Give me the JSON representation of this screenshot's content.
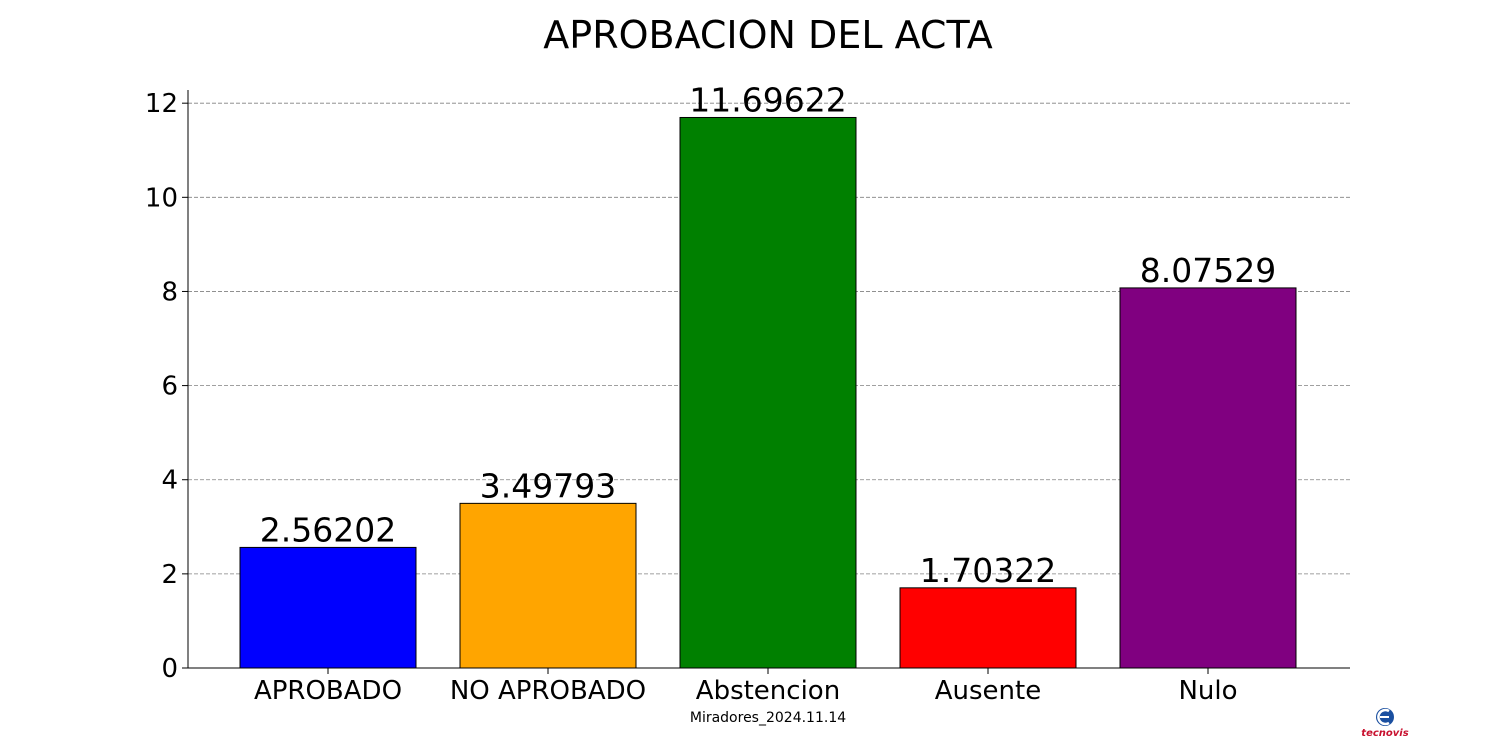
{
  "chart_data": {
    "type": "bar",
    "title": "APROBACION DEL ACTA",
    "categories": [
      "APROBADO",
      "NO APROBADO",
      "Abstencion",
      "Ausente",
      "Nulo"
    ],
    "values": [
      2.56202,
      3.49793,
      11.69622,
      1.70322,
      8.07529
    ],
    "value_labels": [
      "2.56202",
      "3.49793",
      "11.69622",
      "1.70322",
      "8.07529"
    ],
    "colors": [
      "#0000ff",
      "#ffa500",
      "#008000",
      "#ff0000",
      "#800080"
    ],
    "xlabel": "Miradores_2024.11.14",
    "ylabel": "",
    "ylim": [
      0,
      12.28
    ],
    "yticks": [
      0,
      2,
      4,
      6,
      8,
      10,
      12
    ],
    "grid": "y-dashed",
    "legend": "none"
  },
  "logo": {
    "name": "tecnovis-logo",
    "text": "tecnovis"
  }
}
